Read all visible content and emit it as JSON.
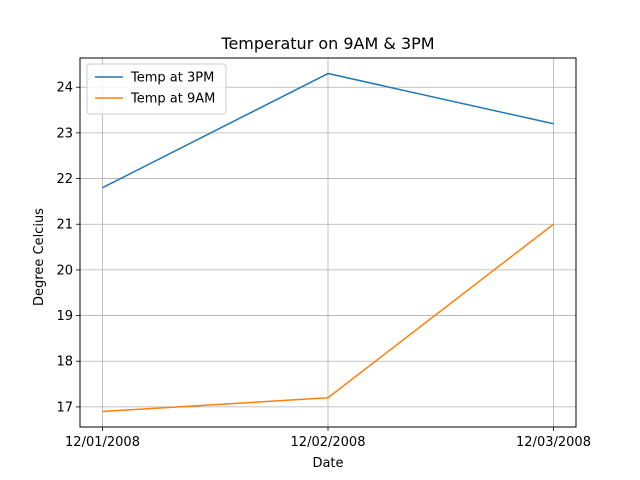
{
  "chart_data": {
    "type": "line",
    "title": "Temperatur on 9AM & 3PM",
    "xlabel": "Date",
    "ylabel": "Degree Celcius",
    "categories": [
      "12/01/2008",
      "12/02/2008",
      "12/03/2008"
    ],
    "series": [
      {
        "name": "Temp at 3PM",
        "color": "#1f77b4",
        "values": [
          21.8,
          24.3,
          23.2
        ]
      },
      {
        "name": "Temp at 9AM",
        "color": "#ff7f0e",
        "values": [
          16.9,
          17.2,
          21.0
        ]
      }
    ],
    "ylim": [
      16.56,
      24.64
    ],
    "yticks": [
      17,
      18,
      19,
      20,
      21,
      22,
      23,
      24
    ],
    "grid": true,
    "legend_position": "top-left"
  }
}
